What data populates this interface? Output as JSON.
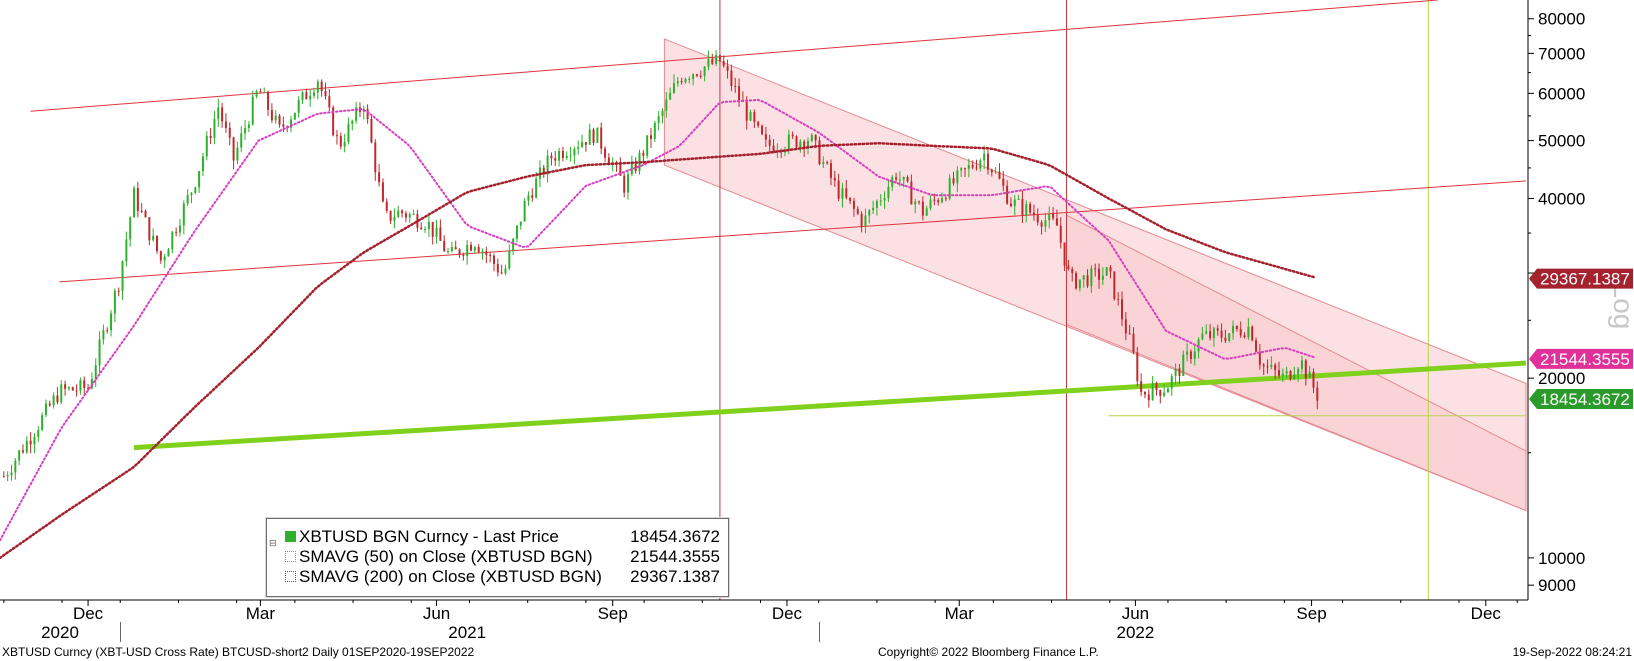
{
  "chart_data": {
    "type": "candlestick",
    "title": "",
    "scale": "log",
    "ylabel_side": "Log",
    "ylim": [
      8500,
      86000
    ],
    "y_ticks": [
      9000,
      10000,
      20000,
      30000,
      40000,
      50000,
      60000,
      70000,
      80000
    ],
    "y_tick_labels": [
      "9000",
      "10000",
      "20000",
      "",
      "40000",
      "50000",
      "60000",
      "70000",
      "80000"
    ],
    "x_tick_labels": [
      "Dec",
      "Mar",
      "Jun",
      "Sep",
      "Dec",
      "Mar",
      "Jun",
      "Sep",
      "Dec"
    ],
    "x_tick_dates": [
      "2020-12-15",
      "2021-03-15",
      "2021-06-15",
      "2021-09-15",
      "2021-12-15",
      "2022-03-15",
      "2022-06-15",
      "2022-09-15",
      "2022-12-15"
    ],
    "year_labels": [
      "2020",
      "2021",
      "2022"
    ],
    "x_range": [
      "2020-10-30",
      "2023-01-05"
    ],
    "series": [
      {
        "name": "XBTUSD BGN Curncy - Last Price",
        "color": "#2db12d",
        "down_color": "#c0282c",
        "last": "18454.3672",
        "points": [
          [
            "2020-11-01",
            13700
          ],
          [
            "2020-11-15",
            16000
          ],
          [
            "2020-11-30",
            19000
          ],
          [
            "2020-12-15",
            19300
          ],
          [
            "2020-12-31",
            29000
          ],
          [
            "2021-01-08",
            40500
          ],
          [
            "2021-01-22",
            31500
          ],
          [
            "2021-02-08",
            42000
          ],
          [
            "2021-02-21",
            57000
          ],
          [
            "2021-03-01",
            46500
          ],
          [
            "2021-03-14",
            61000
          ],
          [
            "2021-03-25",
            52000
          ],
          [
            "2021-04-14",
            63500
          ],
          [
            "2021-04-25",
            49000
          ],
          [
            "2021-05-08",
            58000
          ],
          [
            "2021-05-19",
            37000
          ],
          [
            "2021-05-27",
            38000
          ],
          [
            "2021-06-10",
            36500
          ],
          [
            "2021-06-22",
            32000
          ],
          [
            "2021-07-05",
            34000
          ],
          [
            "2021-07-20",
            29800
          ],
          [
            "2021-08-01",
            40000
          ],
          [
            "2021-08-14",
            47000
          ],
          [
            "2021-09-06",
            51500
          ],
          [
            "2021-09-21",
            42000
          ],
          [
            "2021-10-01",
            48000
          ],
          [
            "2021-10-20",
            64000
          ],
          [
            "2021-11-10",
            68000
          ],
          [
            "2021-11-26",
            54000
          ],
          [
            "2021-12-04",
            49000
          ],
          [
            "2021-12-27",
            50500
          ],
          [
            "2022-01-10",
            41500
          ],
          [
            "2022-01-24",
            36500
          ],
          [
            "2022-02-10",
            44000
          ],
          [
            "2022-02-24",
            38000
          ],
          [
            "2022-03-28",
            47500
          ],
          [
            "2022-04-11",
            39500
          ],
          [
            "2022-05-05",
            36000
          ],
          [
            "2022-05-12",
            29000
          ],
          [
            "2022-06-01",
            30000
          ],
          [
            "2022-06-13",
            22500
          ],
          [
            "2022-06-18",
            18900
          ],
          [
            "2022-07-01",
            19300
          ],
          [
            "2022-07-20",
            23500
          ],
          [
            "2022-07-30",
            23600
          ],
          [
            "2022-08-14",
            24400
          ],
          [
            "2022-08-20",
            21000
          ],
          [
            "2022-09-01",
            20000
          ],
          [
            "2022-09-09",
            21500
          ],
          [
            "2022-09-13",
            20200
          ],
          [
            "2022-09-19",
            18454
          ]
        ]
      },
      {
        "name": "SMAVG (50)  on Close (XBTUSD BGN)",
        "color": "#d63fc0",
        "style": "dotted",
        "last": "21544.3555",
        "points": [
          [
            "2020-10-30",
            10700
          ],
          [
            "2020-12-01",
            16500
          ],
          [
            "2021-01-08",
            24500
          ],
          [
            "2021-02-08",
            35000
          ],
          [
            "2021-03-14",
            50000
          ],
          [
            "2021-04-14",
            55500
          ],
          [
            "2021-05-08",
            56500
          ],
          [
            "2021-06-01",
            49000
          ],
          [
            "2021-07-01",
            36000
          ],
          [
            "2021-08-01",
            33000
          ],
          [
            "2021-09-01",
            42000
          ],
          [
            "2021-10-01",
            45500
          ],
          [
            "2021-10-20",
            49000
          ],
          [
            "2021-11-10",
            58000
          ],
          [
            "2021-12-01",
            58500
          ],
          [
            "2022-01-01",
            51500
          ],
          [
            "2022-02-01",
            43500
          ],
          [
            "2022-03-01",
            40500
          ],
          [
            "2022-04-01",
            40500
          ],
          [
            "2022-05-01",
            42000
          ],
          [
            "2022-06-01",
            34000
          ],
          [
            "2022-07-01",
            24000
          ],
          [
            "2022-08-01",
            21500
          ],
          [
            "2022-09-01",
            22500
          ],
          [
            "2022-09-19",
            21544
          ]
        ]
      },
      {
        "name": "SMAVG (200)  on Close (XBTUSD BGN)",
        "color": "#a4222e",
        "style": "dotted",
        "last": "29367.1387",
        "points": [
          [
            "2020-10-30",
            10000
          ],
          [
            "2020-12-01",
            11800
          ],
          [
            "2021-01-08",
            14200
          ],
          [
            "2021-02-08",
            17800
          ],
          [
            "2021-03-14",
            22500
          ],
          [
            "2021-04-14",
            28500
          ],
          [
            "2021-05-08",
            32500
          ],
          [
            "2021-06-01",
            36000
          ],
          [
            "2021-07-01",
            41000
          ],
          [
            "2021-08-01",
            43500
          ],
          [
            "2021-09-01",
            45500
          ],
          [
            "2021-10-01",
            46000
          ],
          [
            "2021-11-10",
            47000
          ],
          [
            "2021-12-01",
            47500
          ],
          [
            "2022-01-01",
            49000
          ],
          [
            "2022-02-01",
            49500
          ],
          [
            "2022-03-01",
            49000
          ],
          [
            "2022-04-01",
            48500
          ],
          [
            "2022-05-01",
            45500
          ],
          [
            "2022-06-01",
            40000
          ],
          [
            "2022-07-01",
            35500
          ],
          [
            "2022-08-01",
            32500
          ],
          [
            "2022-09-19",
            29367
          ]
        ]
      }
    ],
    "annotations": {
      "trend_lines": [
        {
          "color": "#e0343c",
          "points": [
            [
              "2020-11-15",
              56000
            ],
            [
              "2022-11-20",
              86000
            ]
          ]
        },
        {
          "color": "#e0343c",
          "points": [
            [
              "2020-11-30",
              29000
            ],
            [
              "2023-01-05",
              42800
            ]
          ]
        },
        {
          "color": "#7fd11c",
          "points": [
            [
              "2021-01-08",
              15300
            ],
            [
              "2023-01-05",
              21200
            ]
          ]
        },
        {
          "color": "#b9d44a",
          "points": [
            [
              "2022-06-01",
              17300
            ],
            [
              "2023-01-05",
              17300
            ]
          ]
        }
      ],
      "vertical_lines": [
        {
          "color": "#c8383c",
          "date": "2021-11-10"
        },
        {
          "color": "#c8383c",
          "date": "2022-05-10"
        },
        {
          "color": "#b9d44a",
          "date": "2022-11-15"
        }
      ],
      "channel_bands": [
        {
          "color": "#f7c8cc",
          "upper": [
            [
              "2021-10-12",
              74000
            ],
            [
              "2023-01-05",
              19600
            ]
          ],
          "lower": [
            [
              "2021-10-12",
              45500
            ],
            [
              "2023-01-05",
              12000
            ]
          ]
        },
        {
          "color": "#f7c8cc",
          "upper": [
            [
              "2022-05-10",
              37500
            ],
            [
              "2023-01-05",
              15100
            ]
          ],
          "lower": [
            [
              "2022-05-10",
              24600
            ],
            [
              "2023-01-05",
              12000
            ]
          ]
        }
      ]
    },
    "legend": {
      "placement": "bottom-left",
      "rows": [
        {
          "label": "XBTUSD BGN Curncy - Last Price",
          "value": "18454.3672"
        },
        {
          "label": "SMAVG (50)  on Close (XBTUSD BGN)",
          "value": "21544.3555"
        },
        {
          "label": "SMAVG (200)  on Close (XBTUSD BGN)",
          "value": "29367.1387"
        }
      ]
    },
    "badges": [
      {
        "value": "29367.1387",
        "color": "#a4222e"
      },
      {
        "value": "21544.3555",
        "color": "#e0309a"
      },
      {
        "value": "18454.3672",
        "color": "#2a9b2a"
      }
    ]
  },
  "footer": {
    "left": "XBTUSD Curncy (XBT-USD Cross Rate) BTCUSD-short2  Daily 01SEP2020-19SEP2022",
    "center": "Copyright© 2022 Bloomberg Finance L.P.",
    "right": "19-Sep-2022 08:24:21"
  }
}
